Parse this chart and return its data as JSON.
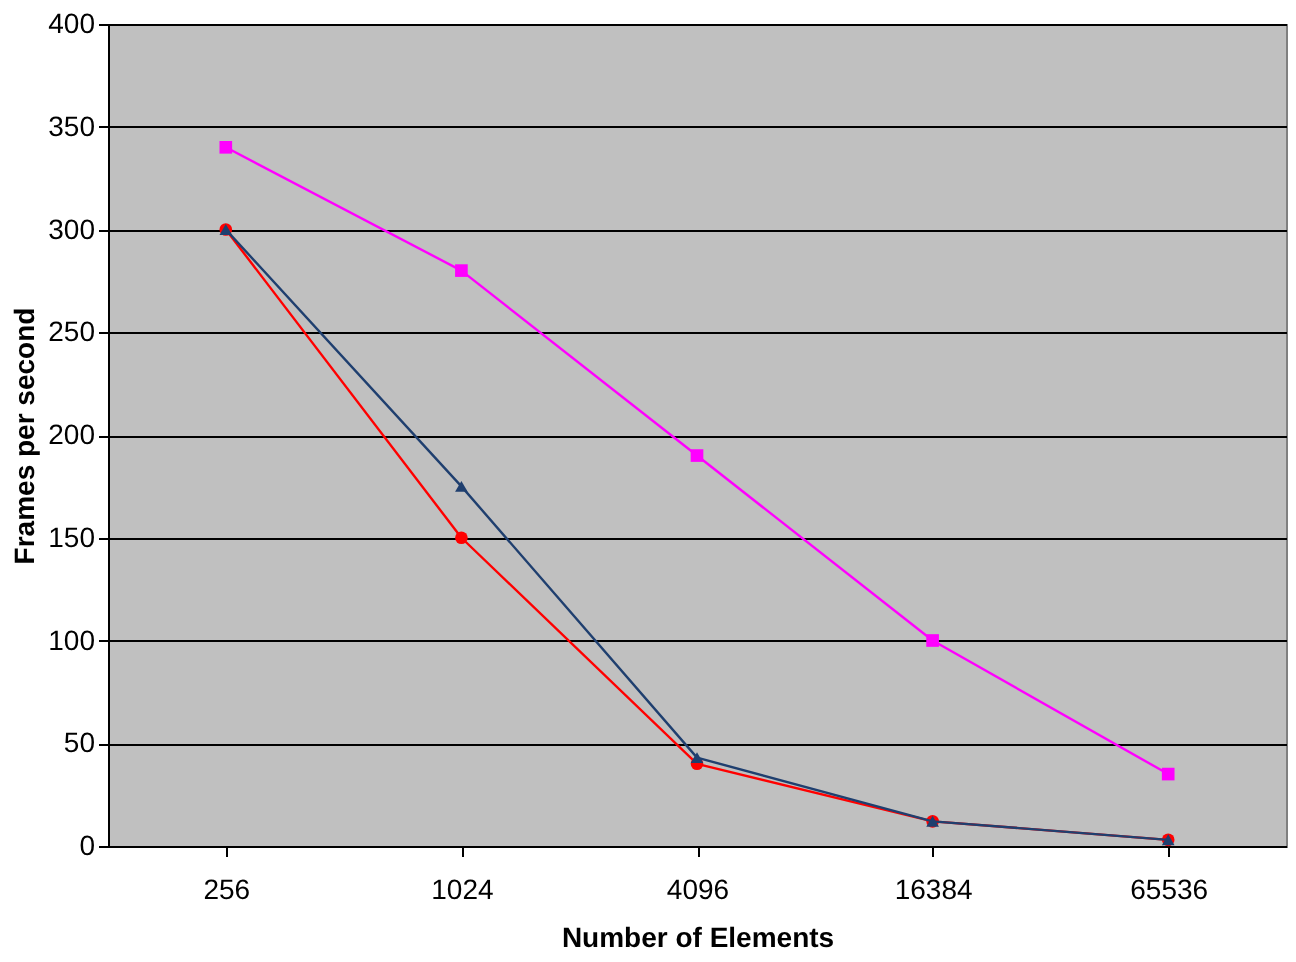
{
  "chart_data": {
    "type": "line",
    "xlabel": "Number of Elements",
    "ylabel": "Frames per second",
    "categories": [
      "256",
      "1024",
      "4096",
      "16384",
      "65536"
    ],
    "series": [
      {
        "color": "#ff00ff",
        "marker": "square",
        "values": [
          340,
          280,
          190,
          100,
          35
        ]
      },
      {
        "color": "#ff0000",
        "marker": "circle",
        "values": [
          300,
          150,
          40,
          12,
          3
        ]
      },
      {
        "color": "#1f3f6f",
        "marker": "triangle",
        "values": [
          300,
          175,
          43,
          12,
          3
        ]
      }
    ],
    "ylim": [
      0,
      400
    ],
    "yticks": [
      0,
      50,
      100,
      150,
      200,
      250,
      300,
      350,
      400
    ],
    "grid": "y",
    "line_style": "solid"
  }
}
